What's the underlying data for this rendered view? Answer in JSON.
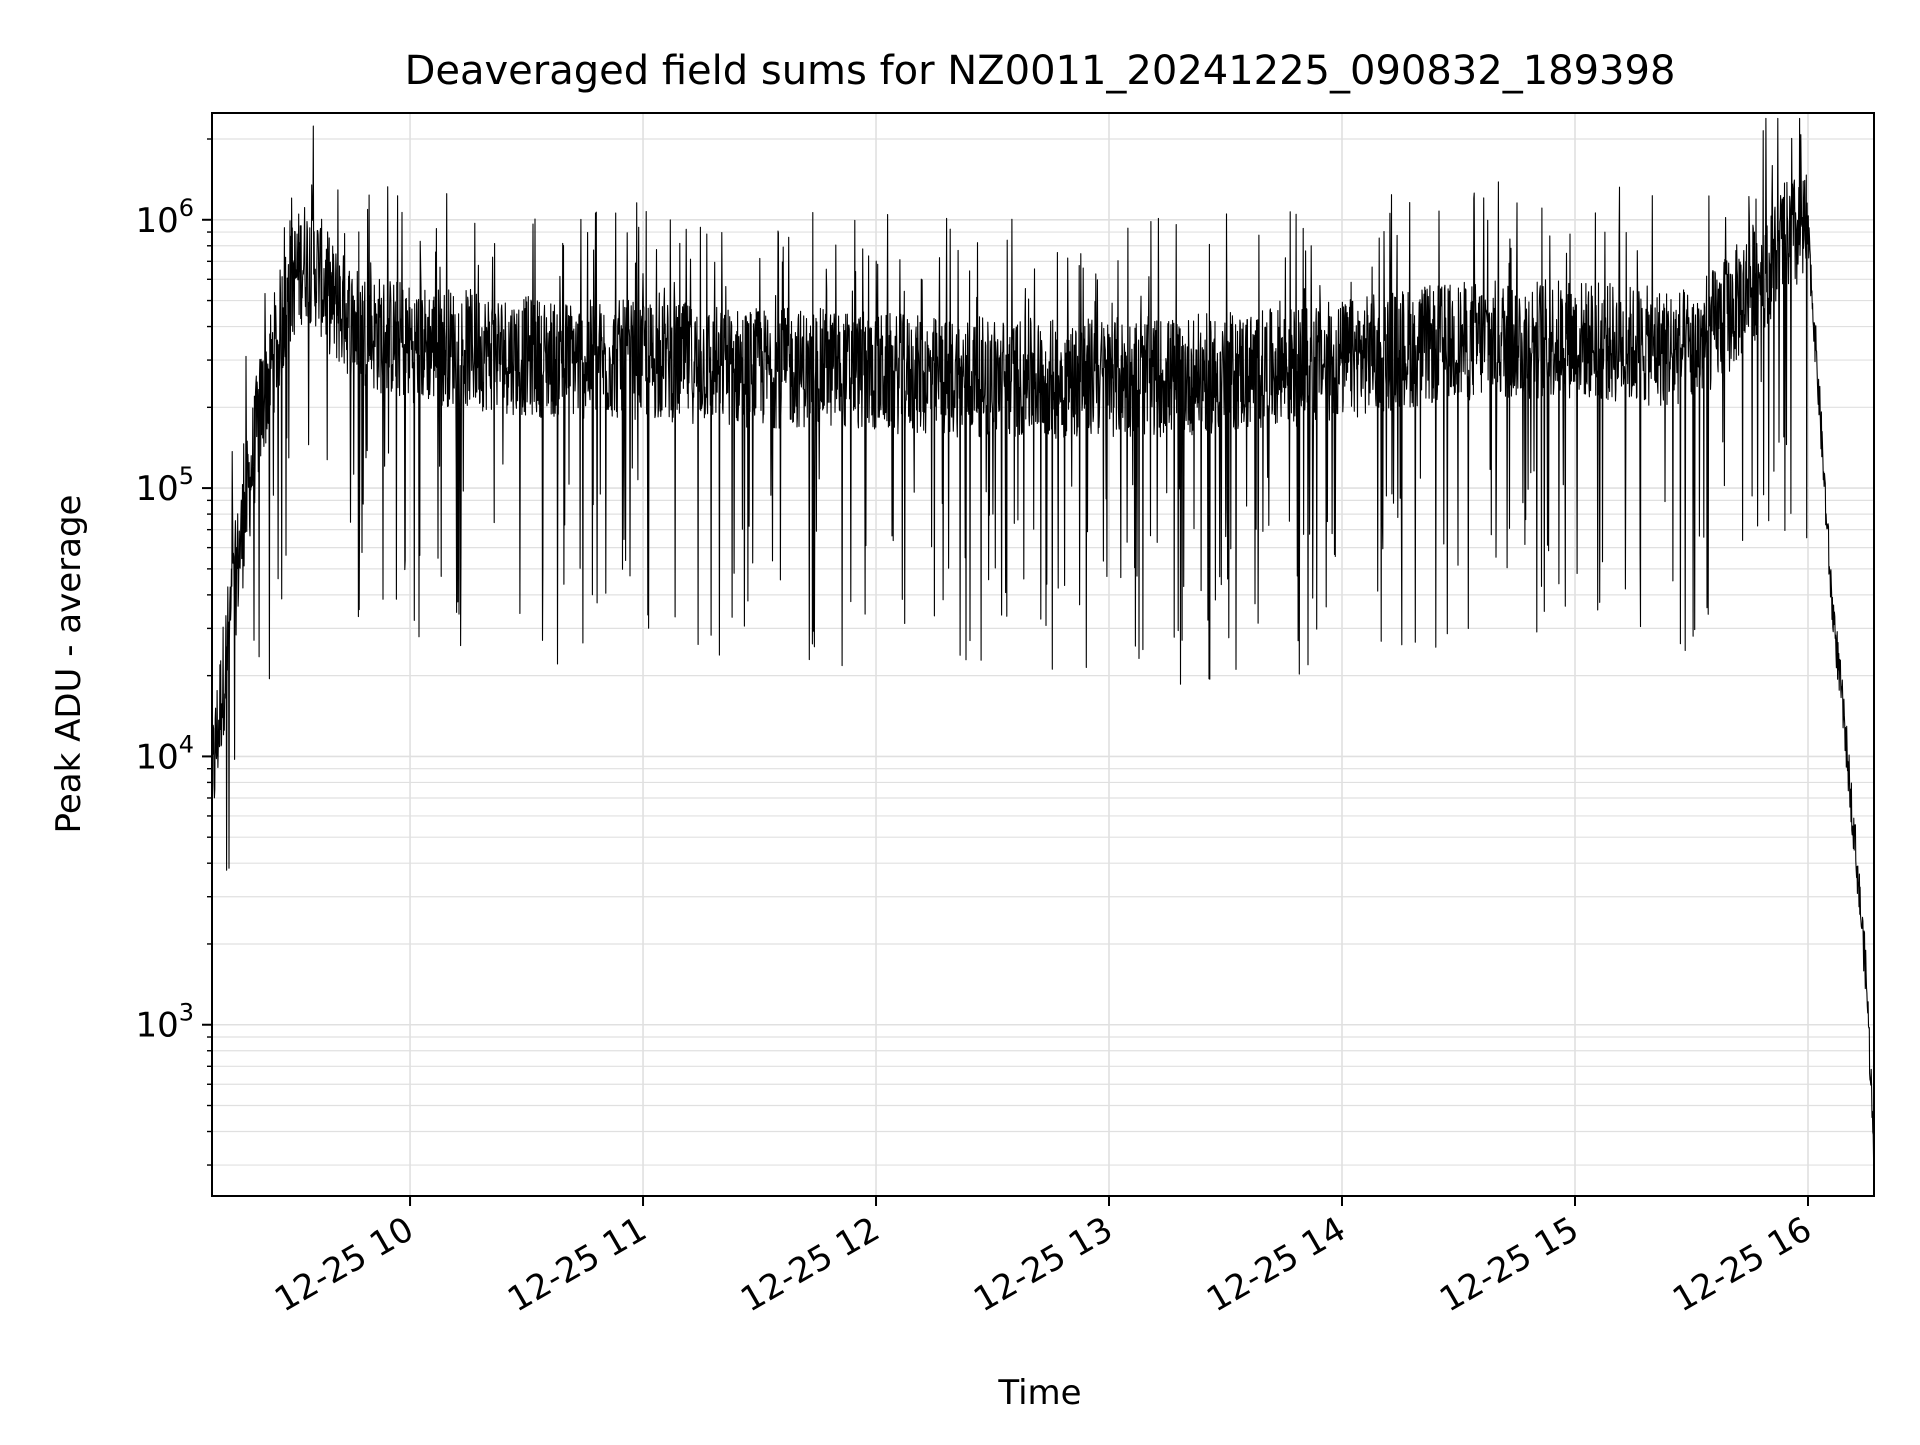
{
  "chart_data": {
    "type": "line",
    "title": "Deaveraged field sums for NZ0011_20241225_090832_189398",
    "xlabel": "Time",
    "ylabel": "Peak ADU - average",
    "yscale": "log",
    "grid": true,
    "xlim": [
      "2024-12-25T09:09",
      "2024-12-25T16:17"
    ],
    "ylim": [
      230,
      2500000
    ],
    "x_ticks": [
      {
        "value": "2024-12-25T10:00",
        "label": "12-25 10"
      },
      {
        "value": "2024-12-25T11:00",
        "label": "12-25 11"
      },
      {
        "value": "2024-12-25T12:00",
        "label": "12-25 12"
      },
      {
        "value": "2024-12-25T13:00",
        "label": "12-25 13"
      },
      {
        "value": "2024-12-25T14:00",
        "label": "12-25 14"
      },
      {
        "value": "2024-12-25T15:00",
        "label": "12-25 15"
      },
      {
        "value": "2024-12-25T16:00",
        "label": "12-25 16"
      }
    ],
    "y_ticks": [
      {
        "value": 1000,
        "base": "10",
        "exp": "3"
      },
      {
        "value": 10000,
        "base": "10",
        "exp": "4"
      },
      {
        "value": 100000,
        "base": "10",
        "exp": "5"
      },
      {
        "value": 1000000,
        "base": "10",
        "exp": "6"
      }
    ],
    "series": [
      {
        "color": "#000000",
        "x": [
          "2024-12-25T09:09",
          "2024-12-25T09:12",
          "2024-12-25T09:15",
          "2024-12-25T09:18",
          "2024-12-25T09:21",
          "2024-12-25T09:24",
          "2024-12-25T09:27",
          "2024-12-25T09:30",
          "2024-12-25T09:33",
          "2024-12-25T09:36",
          "2024-12-25T09:40",
          "2024-12-25T09:45",
          "2024-12-25T09:50",
          "2024-12-25T10:00",
          "2024-12-25T10:15",
          "2024-12-25T10:30",
          "2024-12-25T10:45",
          "2024-12-25T11:00",
          "2024-12-25T11:15",
          "2024-12-25T11:30",
          "2024-12-25T11:45",
          "2024-12-25T12:00",
          "2024-12-25T12:15",
          "2024-12-25T12:30",
          "2024-12-25T12:45",
          "2024-12-25T13:00",
          "2024-12-25T13:15",
          "2024-12-25T13:30",
          "2024-12-25T13:45",
          "2024-12-25T14:00",
          "2024-12-25T14:15",
          "2024-12-25T14:30",
          "2024-12-25T14:45",
          "2024-12-25T15:00",
          "2024-12-25T15:15",
          "2024-12-25T15:30",
          "2024-12-25T15:40",
          "2024-12-25T15:50",
          "2024-12-25T15:55",
          "2024-12-25T16:00",
          "2024-12-25T16:03",
          "2024-12-25T16:06",
          "2024-12-25T16:09",
          "2024-12-25T16:12",
          "2024-12-25T16:15",
          "2024-12-25T16:17"
        ],
        "values": [
          8000,
          20000,
          45000,
          90000,
          180000,
          280000,
          420000,
          600000,
          720000,
          650000,
          500000,
          420000,
          380000,
          350000,
          330000,
          310000,
          300000,
          300000,
          290000,
          280000,
          280000,
          270000,
          260000,
          260000,
          255000,
          260000,
          260000,
          270000,
          280000,
          300000,
          330000,
          350000,
          360000,
          360000,
          340000,
          330000,
          450000,
          700000,
          850000,
          900000,
          200000,
          40000,
          15000,
          5000,
          1500,
          350
        ]
      }
    ]
  }
}
